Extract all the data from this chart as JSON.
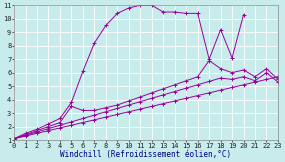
{
  "bg_color": "#c8ecec",
  "grid_color": "#aadddd",
  "line_color": "#990099",
  "marker": "+",
  "series": [
    {
      "x": [
        0,
        1,
        2,
        3,
        4,
        5,
        6,
        7,
        8,
        9,
        10,
        11,
        12,
        13,
        14,
        15,
        16,
        17,
        18,
        19,
        20,
        21,
        22,
        23
      ],
      "y": [
        1.1,
        1.3,
        1.5,
        1.7,
        1.9,
        2.1,
        2.3,
        2.5,
        2.7,
        2.9,
        3.1,
        3.3,
        3.5,
        3.7,
        3.9,
        4.1,
        4.3,
        4.5,
        4.7,
        4.9,
        5.1,
        5.3,
        5.5,
        5.7
      ]
    },
    {
      "x": [
        0,
        1,
        2,
        3,
        4,
        5,
        6,
        7,
        8,
        9,
        10,
        11,
        12,
        13,
        14,
        15,
        16,
        17,
        18,
        19,
        20,
        21,
        22,
        23
      ],
      "y": [
        1.1,
        1.35,
        1.6,
        1.85,
        2.1,
        2.35,
        2.6,
        2.85,
        3.1,
        3.35,
        3.6,
        3.85,
        4.1,
        4.35,
        4.6,
        4.85,
        5.1,
        5.35,
        5.6,
        5.5,
        5.7,
        5.4,
        6.0,
        5.3
      ]
    },
    {
      "x": [
        0,
        1,
        2,
        3,
        4,
        5,
        6,
        7,
        8,
        9,
        10,
        11,
        12,
        13,
        14,
        15,
        16,
        17,
        18,
        19,
        20,
        21,
        22,
        23
      ],
      "y": [
        1.1,
        1.4,
        1.7,
        2.0,
        2.3,
        3.5,
        3.2,
        3.2,
        3.4,
        3.6,
        3.9,
        4.2,
        4.5,
        4.8,
        5.1,
        5.4,
        5.7,
        6.9,
        6.3,
        6.0,
        6.2,
        5.7,
        6.3,
        5.5
      ]
    },
    {
      "x": [
        0,
        1,
        2,
        3,
        4,
        5,
        6,
        7,
        8,
        9,
        10,
        11,
        12,
        13,
        14,
        15,
        16,
        17,
        18,
        19,
        20
      ],
      "y": [
        1.1,
        1.5,
        1.8,
        2.2,
        2.6,
        3.8,
        6.1,
        8.2,
        9.5,
        10.4,
        10.8,
        11.0,
        11.0,
        10.5,
        10.5,
        10.4,
        10.4,
        7.0,
        9.2,
        7.1,
        10.3
      ]
    }
  ],
  "xlim": [
    0,
    23
  ],
  "ylim": [
    1,
    11
  ],
  "xticks": [
    0,
    1,
    2,
    3,
    4,
    5,
    6,
    7,
    8,
    9,
    10,
    11,
    12,
    13,
    14,
    15,
    16,
    17,
    18,
    19,
    20,
    21,
    22,
    23
  ],
  "yticks": [
    1,
    2,
    3,
    4,
    5,
    6,
    7,
    8,
    9,
    10,
    11
  ],
  "xlabel": "Windchill (Refroidissement éolien,°C)",
  "xlabel_color": "#000080",
  "tick_fontsize": 5.0,
  "xlabel_fontsize": 5.5
}
